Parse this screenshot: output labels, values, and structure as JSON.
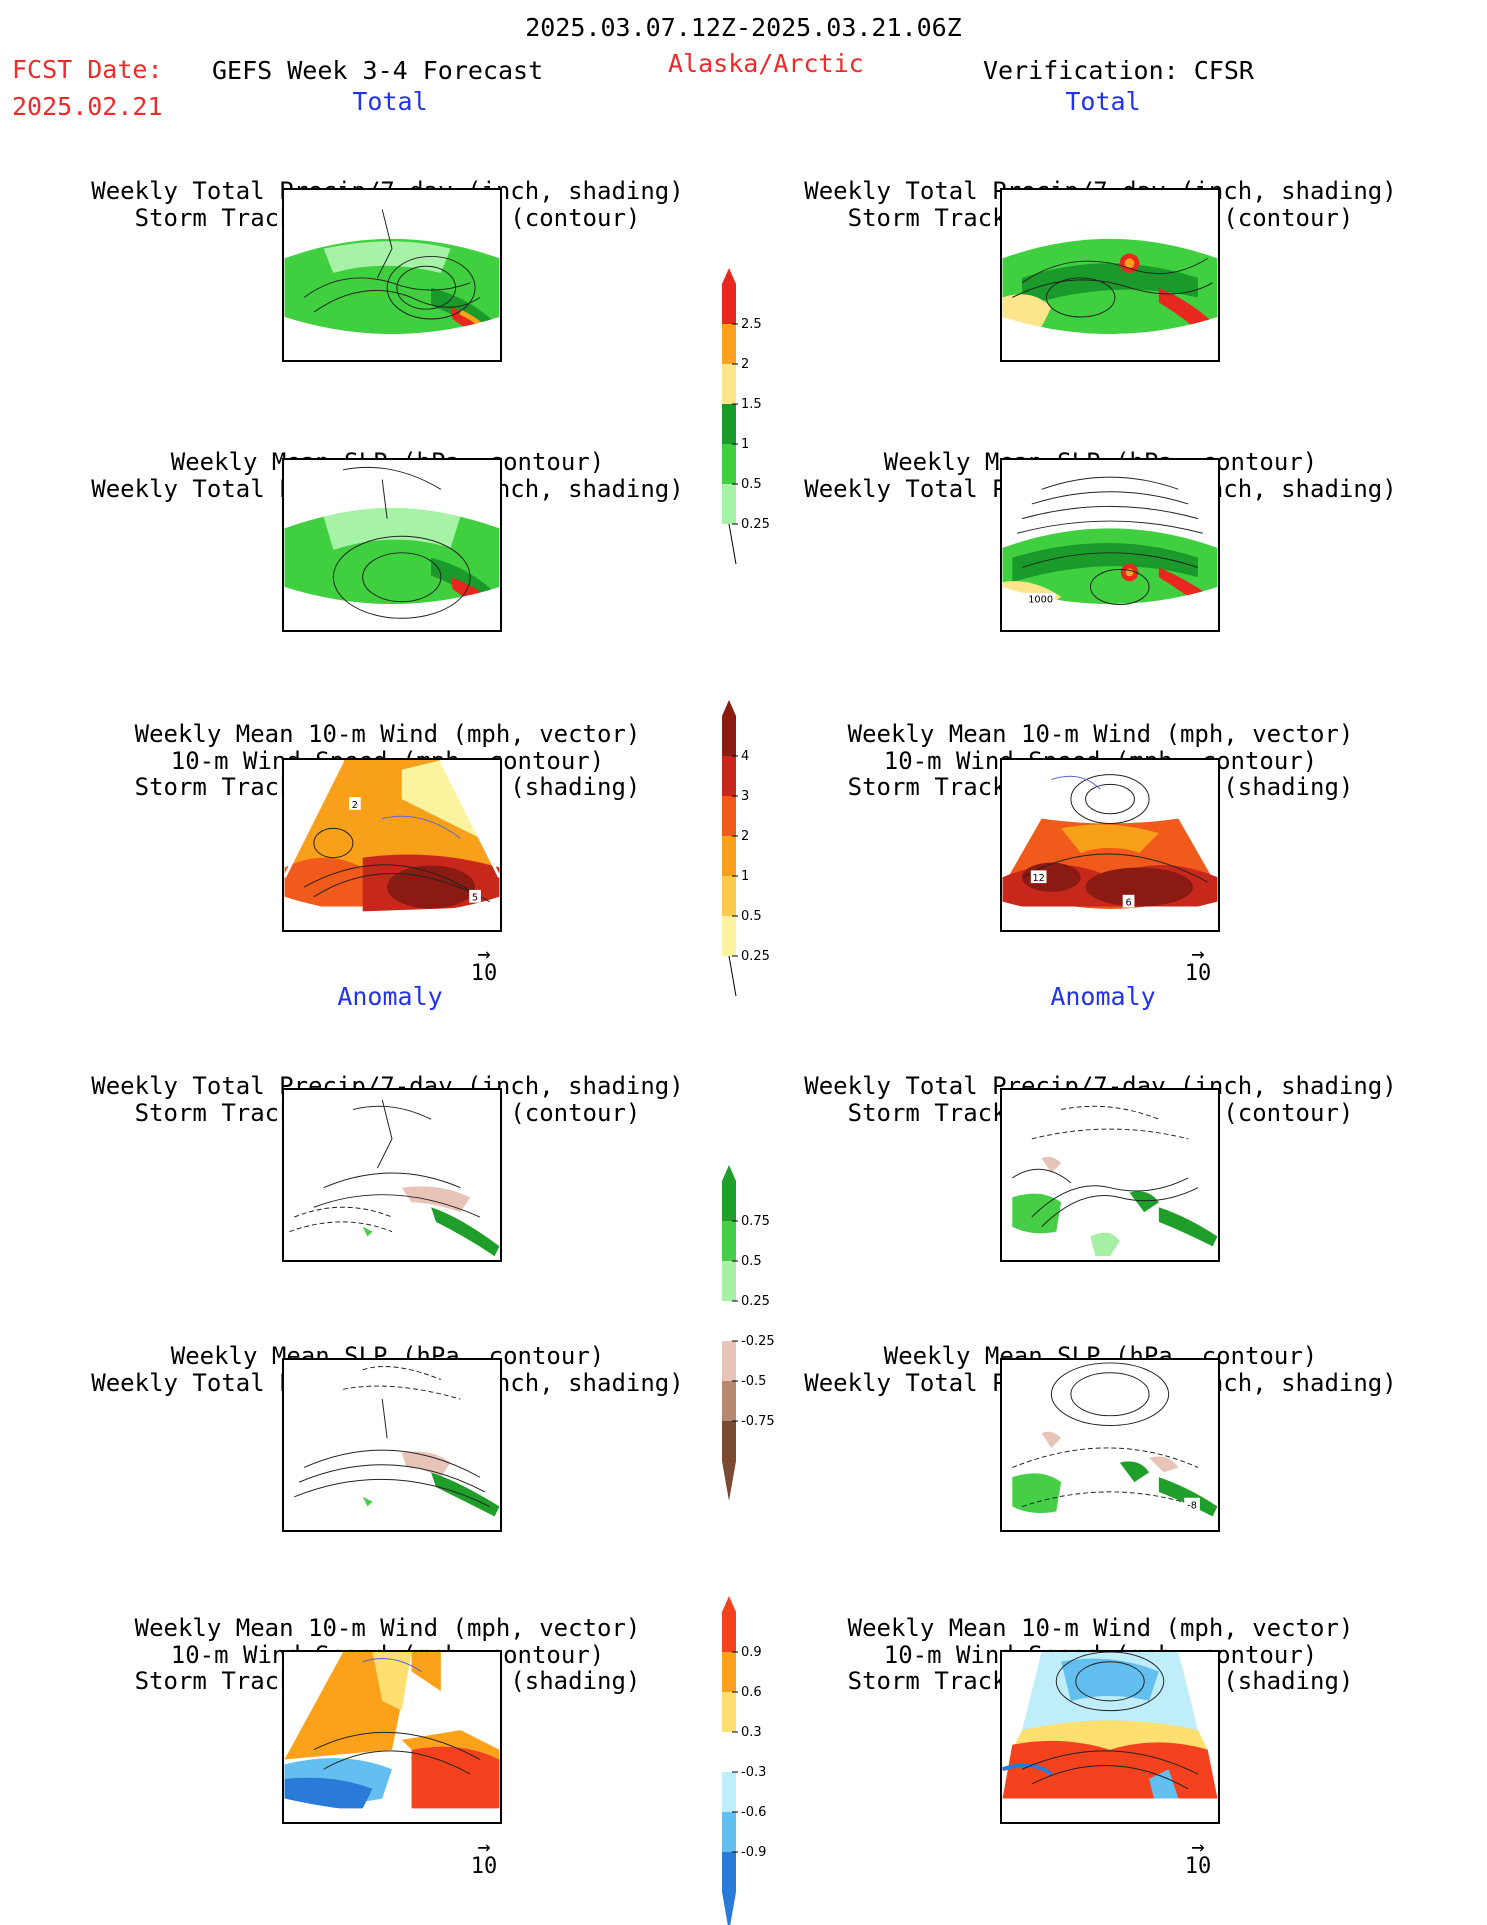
{
  "header": {
    "period": "2025.03.07.12Z-2025.03.21.06Z",
    "fcst_date_label": "FCST Date:",
    "fcst_date_value": "2025.02.21",
    "model_title": "GEFS Week 3-4 Forecast",
    "region": "Alaska/Arctic",
    "verification": "Verification: CFSR"
  },
  "sections": {
    "total_left": "Total",
    "total_right": "Total",
    "anomaly_left": "Anomaly",
    "anomaly_right": "Anomaly"
  },
  "panel_titles": {
    "precip_storm": [
      "Weekly Total Precip/7-day (inch, shading)",
      "Storm Track Density/7-day (contour)"
    ],
    "slp_precip": [
      "Weekly Mean SLP (hPa, contour)",
      "Weekly Total Precip/7-day (inch, shading)"
    ],
    "wind_storm": [
      "Weekly Mean 10-m Wind (mph, vector)",
      "10-m Wind Speed (mph, contour)",
      "Storm Track Density/7-day (shading)"
    ]
  },
  "map_labels": {
    "total_wind_left_a": "2",
    "total_wind_left_b": "5",
    "total_slp_right": "1000",
    "total_wind_right_a": "12",
    "total_wind_right_b": "6",
    "anom_slp_right": "-8"
  },
  "vector_reference": "10",
  "colorbars": {
    "precip_total": {
      "labels": [
        "2.5",
        "2",
        "1.5",
        "1",
        "0.5",
        "0.25"
      ],
      "colors": [
        "#e8281e",
        "#fba21a",
        "#fde58c",
        "#1a9a2a",
        "#3fcf3f",
        "#a6f2a6"
      ]
    },
    "storm_total": {
      "labels": [
        "4",
        "3",
        "2",
        "1",
        "0.5",
        "0.25"
      ],
      "colors": [
        "#8b1a12",
        "#c8281c",
        "#f05a1a",
        "#f9a01a",
        "#fcca4a",
        "#fef4a0"
      ]
    },
    "precip_anom": {
      "labels": [
        "0.75",
        "0.5",
        "0.25",
        "-0.25",
        "-0.5",
        "-0.75"
      ],
      "colors_pos": [
        "#1f9e2a",
        "#46cf46",
        "#a6f0a6"
      ],
      "colors_neg": [
        "#e8c4b8",
        "#b58870",
        "#7a4a32"
      ]
    },
    "storm_anom": {
      "labels": [
        "0.9",
        "0.6",
        "0.3",
        "-0.3",
        "-0.6",
        "-0.9"
      ],
      "colors_pos": [
        "#f5421e",
        "#fba21a",
        "#fde070"
      ],
      "colors_neg": [
        "#bfeefa",
        "#62bff0",
        "#2a7ad8"
      ]
    }
  },
  "colors": {
    "date_text": "#ee2a2a",
    "section_text": "#2233ee",
    "contour": "#1a1a1a",
    "vector": "#5560dd"
  }
}
